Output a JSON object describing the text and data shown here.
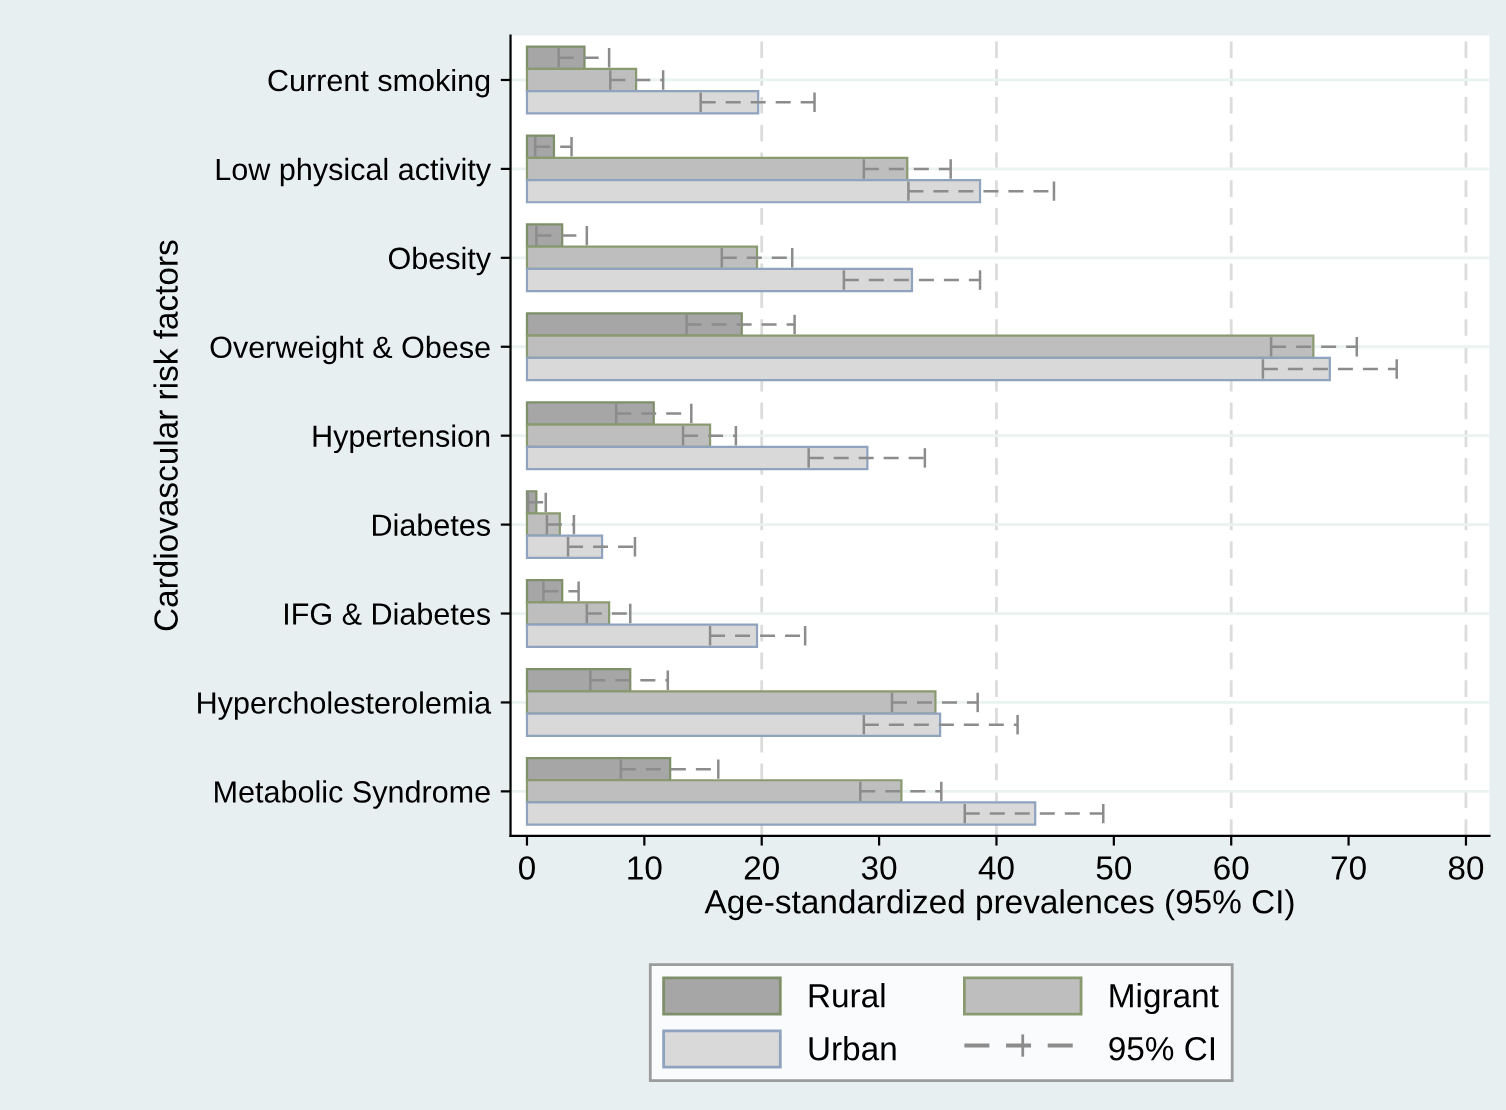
{
  "chart_data": {
    "type": "bar",
    "orientation": "horizontal",
    "xlabel": "Age-standardized prevalences (95% CI)",
    "ylabel": "Cardiovascular risk factors",
    "categories": [
      "Current smoking",
      "Low physical activity",
      "Obesity",
      "Overweight & Obese",
      "Hypertension",
      "Diabetes",
      "IFG & Diabetes",
      "Hypercholesterolemia",
      "Metabolic Syndrome"
    ],
    "series": [
      {
        "name": "Rural",
        "color": "#a6a6a6",
        "values": [
          4.9,
          2.3,
          3.0,
          18.3,
          10.8,
          0.8,
          3.0,
          8.8,
          12.2
        ],
        "errors": [
          [
            2.7,
            7.0
          ],
          [
            0.7,
            3.8
          ],
          [
            0.8,
            5.1
          ],
          [
            13.6,
            22.8
          ],
          [
            7.6,
            14.0
          ],
          [
            0.1,
            1.6
          ],
          [
            1.4,
            4.4
          ],
          [
            5.4,
            12.0
          ],
          [
            8.0,
            16.3
          ]
        ]
      },
      {
        "name": "Migrant",
        "color": "#bebebe",
        "values": [
          9.3,
          32.4,
          19.6,
          67.0,
          15.6,
          2.8,
          7.0,
          34.8,
          31.9
        ],
        "errors": [
          [
            7.1,
            11.6
          ],
          [
            28.7,
            36.1
          ],
          [
            16.6,
            22.6
          ],
          [
            63.4,
            70.7
          ],
          [
            13.3,
            17.8
          ],
          [
            1.7,
            4.0
          ],
          [
            5.1,
            8.8
          ],
          [
            31.1,
            38.4
          ],
          [
            28.4,
            35.3
          ]
        ]
      },
      {
        "name": "Urban",
        "color": "#d9d9d9",
        "values": [
          19.7,
          38.6,
          32.8,
          68.4,
          29.0,
          6.4,
          19.6,
          35.2,
          43.3
        ],
        "errors": [
          [
            14.8,
            24.5
          ],
          [
            32.5,
            44.9
          ],
          [
            27.0,
            38.6
          ],
          [
            62.7,
            74.1
          ],
          [
            24.0,
            33.9
          ],
          [
            3.5,
            9.2
          ],
          [
            15.6,
            23.7
          ],
          [
            28.7,
            41.8
          ],
          [
            37.3,
            49.1
          ]
        ]
      }
    ],
    "annotations": [
      "95% CI"
    ],
    "xlim": [
      -1.4,
      82
    ],
    "xticks": [
      0,
      10,
      20,
      30,
      40,
      50,
      60,
      70,
      80
    ],
    "grid": true,
    "legend": "bottom"
  }
}
